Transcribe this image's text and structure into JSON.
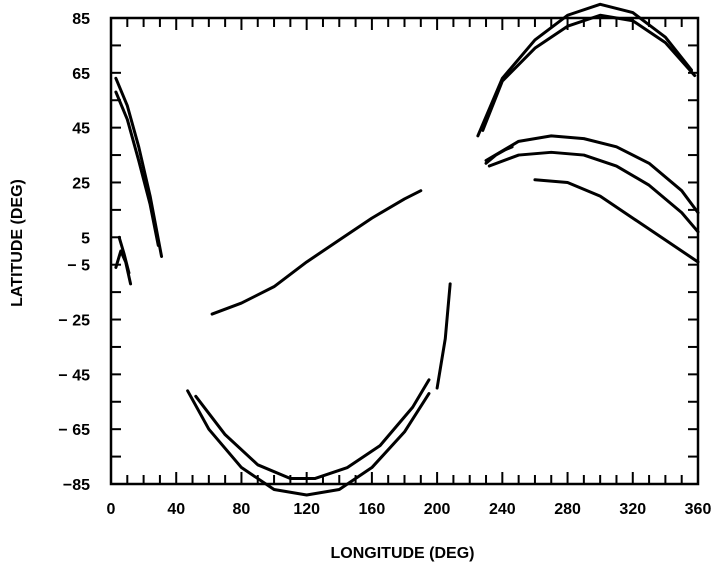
{
  "chart_data": {
    "type": "line",
    "title": "",
    "xlabel": "LONGITUDE (DEG)",
    "ylabel": "LATITUDE (DEG)",
    "xlim": [
      0,
      360
    ],
    "ylim": [
      -85,
      85
    ],
    "x_tick_labels": [
      "0",
      "40",
      "80",
      "120",
      "160",
      "200",
      "240",
      "280",
      "320",
      "360"
    ],
    "x_tick_values": [
      0,
      40,
      80,
      120,
      160,
      200,
      240,
      280,
      320,
      360
    ],
    "y_tick_labels": [
      "85",
      "65",
      "45",
      "25",
      "5",
      "− 5",
      "− 25",
      "− 45",
      "− 65",
      "−85"
    ],
    "y_tick_values": [
      85,
      65,
      45,
      25,
      5,
      -5,
      -25,
      -45,
      -65,
      -85
    ],
    "grid": false,
    "series": [
      {
        "x": [
          3,
          10,
          17,
          24,
          31
        ],
        "y": [
          63,
          53,
          38,
          20,
          -2
        ]
      },
      {
        "x": [
          3,
          10,
          17,
          24,
          29
        ],
        "y": [
          58,
          48,
          33,
          17,
          2
        ]
      },
      {
        "x": [
          3,
          6,
          9,
          12
        ],
        "y": [
          -6,
          0,
          -4,
          -12
        ]
      },
      {
        "x": [
          5,
          8,
          11
        ],
        "y": [
          5,
          -1,
          -8
        ]
      },
      {
        "x": [
          47,
          60,
          80,
          100,
          120,
          140,
          160,
          180,
          195
        ],
        "y": [
          -51,
          -65,
          -79,
          -87,
          -89,
          -87,
          -79,
          -66,
          -52
        ]
      },
      {
        "x": [
          52,
          70,
          90,
          110,
          125,
          145,
          165,
          185,
          195
        ],
        "y": [
          -53,
          -67,
          -78,
          -83,
          -83,
          -79,
          -71,
          -57,
          -47
        ]
      },
      {
        "x": [
          62,
          80,
          100,
          120,
          140,
          160,
          180,
          190
        ],
        "y": [
          -23,
          -19,
          -13,
          -4,
          4,
          12,
          19,
          22
        ]
      },
      {
        "x": [
          200,
          205,
          208
        ],
        "y": [
          -50,
          -32,
          -12
        ]
      },
      {
        "x": [
          225,
          240,
          260,
          280,
          300,
          320,
          340,
          356
        ],
        "y": [
          42,
          63,
          77,
          86,
          90,
          87,
          78,
          66
        ]
      },
      {
        "x": [
          228,
          240,
          260,
          280,
          300,
          320,
          340,
          358
        ],
        "y": [
          44,
          62,
          74,
          82,
          86,
          84,
          76,
          64
        ]
      },
      {
        "x": [
          230,
          250,
          270,
          290,
          310,
          330,
          350,
          360
        ],
        "y": [
          33,
          40,
          42,
          41,
          38,
          32,
          22,
          14
        ]
      },
      {
        "x": [
          232,
          250,
          270,
          290,
          310,
          330,
          350,
          360
        ],
        "y": [
          31,
          35,
          36,
          35,
          31,
          24,
          14,
          7
        ]
      },
      {
        "x": [
          260,
          280,
          300,
          320,
          340,
          360
        ],
        "y": [
          26,
          25,
          20,
          12,
          4,
          -4
        ]
      },
      {
        "x": [
          230,
          236,
          242,
          246
        ],
        "y": [
          32,
          35,
          37,
          38
        ]
      }
    ]
  }
}
